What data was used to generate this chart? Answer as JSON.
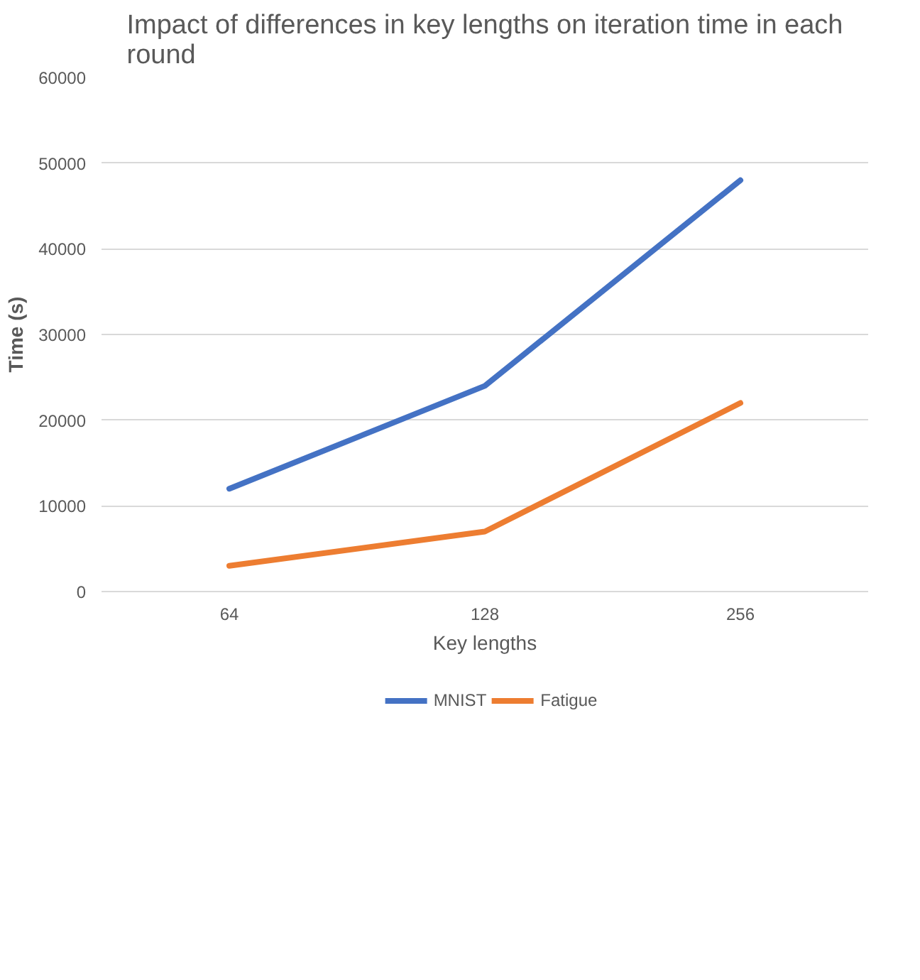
{
  "chart_data": {
    "type": "line",
    "title": "Impact of differences in key lengths on iteration time in each round",
    "xlabel": "Key lengths",
    "ylabel": "Time (s)",
    "categories": [
      "64",
      "128",
      "256"
    ],
    "series": [
      {
        "name": "MNIST",
        "color": "#4472c4",
        "values": [
          12000,
          24000,
          48000
        ]
      },
      {
        "name": "Fatigue",
        "color": "#ed7d31",
        "values": [
          3000,
          7000,
          22000
        ]
      }
    ],
    "ylim": [
      0,
      60000
    ],
    "yticks": [
      0,
      10000,
      20000,
      30000,
      40000,
      50000,
      60000
    ],
    "grid": "y",
    "legend": "bottom",
    "marker": "none",
    "line_style": "solid"
  }
}
